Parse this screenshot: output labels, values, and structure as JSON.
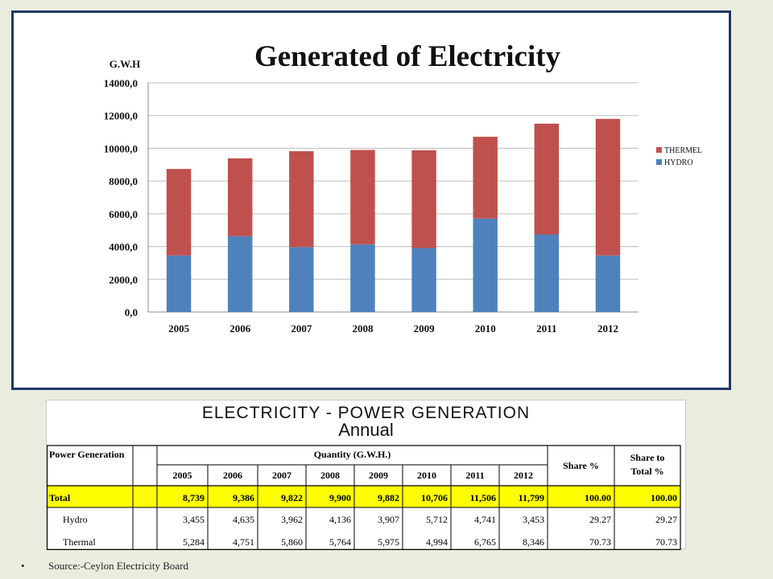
{
  "chart_data": {
    "type": "bar",
    "stacked": true,
    "title": "Generated of Electricity",
    "ylabel": "G.W.H",
    "categories": [
      "2005",
      "2006",
      "2007",
      "2008",
      "2009",
      "2010",
      "2011",
      "2012"
    ],
    "series": [
      {
        "name": "HYDRO",
        "values": [
          3455,
          4635,
          3962,
          4136,
          3907,
          5712,
          4741,
          3453
        ],
        "color": "#4f81bd"
      },
      {
        "name": "THERMEL",
        "values": [
          5284,
          4751,
          5860,
          5764,
          5975,
          4994,
          6765,
          8346
        ],
        "color": "#c0504d"
      }
    ],
    "ylim": [
      0,
      14000
    ],
    "yticks": [
      "0,0",
      "2000,0",
      "4000,0",
      "6000,0",
      "8000,0",
      "10000,0",
      "12000,0",
      "14000,0"
    ],
    "legend_order": [
      "THERMEL",
      "HYDRO"
    ],
    "legend_position": "right",
    "grid": true
  },
  "table": {
    "title_line1": "ELECTRICITY - POWER GENERATION",
    "title_line2": "Annual",
    "header_power": "Power Generation",
    "header_quantity": "Quantity (G.W.H.)",
    "header_share": "Share %",
    "header_share_total_1": "Share to",
    "header_share_total_2": "Total %",
    "years": [
      "2005",
      "2006",
      "2007",
      "2008",
      "2009",
      "2010",
      "2011",
      "2012"
    ],
    "rows": [
      {
        "label": "Total",
        "values": [
          "8,739",
          "9,386",
          "9,822",
          "9,900",
          "9,882",
          "10,706",
          "11,506",
          "11,799"
        ],
        "share": "100.00",
        "share_total": "100.00",
        "highlight": true
      },
      {
        "label": "Hydro",
        "values": [
          "3,455",
          "4,635",
          "3,962",
          "4,136",
          "3,907",
          "5,712",
          "4,741",
          "3,453"
        ],
        "share": "29.27",
        "share_total": "29.27",
        "highlight": false
      },
      {
        "label": "Thermal",
        "values": [
          "5,284",
          "4,751",
          "5,860",
          "5,764",
          "5,975",
          "4,994",
          "6,765",
          "8,346"
        ],
        "share": "70.73",
        "share_total": "70.73",
        "highlight": false
      }
    ]
  },
  "source": "Source:-Ceylon Electricity Board",
  "bullet": "•"
}
